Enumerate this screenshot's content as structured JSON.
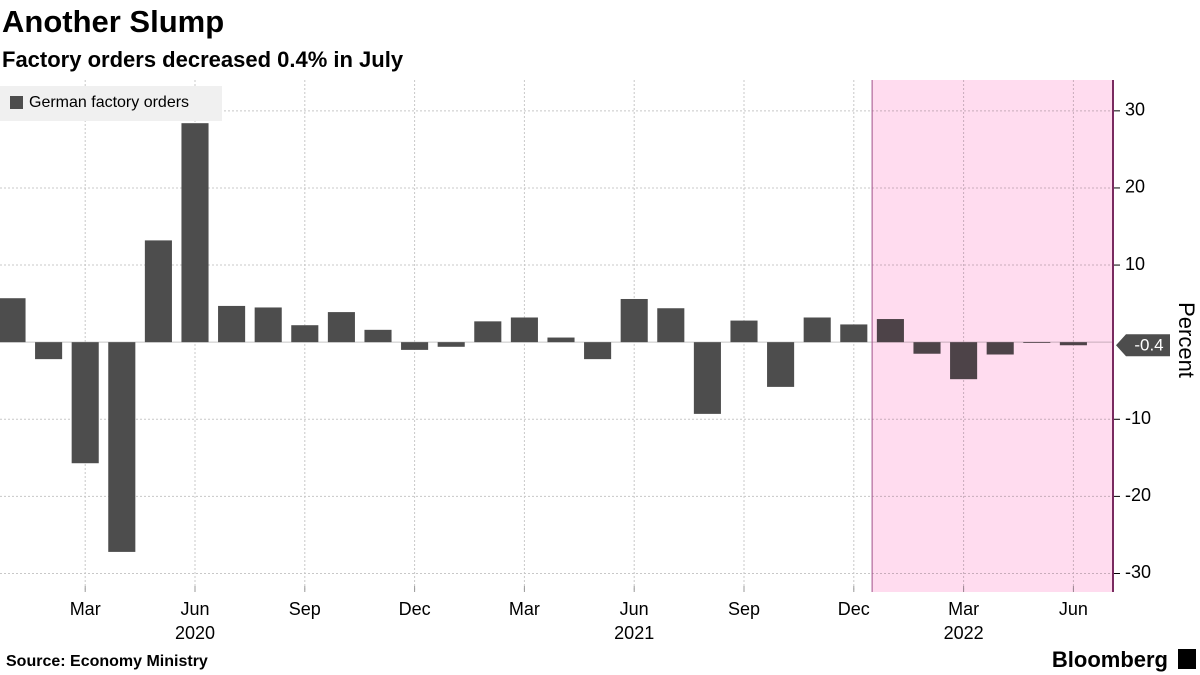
{
  "chart_data": {
    "type": "bar",
    "title": "Another Slump",
    "subtitle": "Factory orders decreased 0.4% in July",
    "y_axis_label": "Percent",
    "source": "Source: Economy Ministry",
    "brand": "Bloomberg",
    "categories": [
      null,
      null,
      "Mar",
      null,
      null,
      "Jun",
      null,
      null,
      "Sep",
      null,
      null,
      "Dec",
      null,
      null,
      "Mar",
      null,
      null,
      "Jun",
      null,
      null,
      "Sep",
      null,
      null,
      "Dec",
      null,
      null,
      "Mar",
      null,
      null,
      "Jun"
    ],
    "years": [
      {
        "index": 5,
        "label": "2020"
      },
      {
        "index": 17,
        "label": "2021"
      },
      {
        "index": 26,
        "label": "2022"
      }
    ],
    "series": [
      {
        "name": "German factory orders",
        "color": "#4d4d4d",
        "values": [
          5.7,
          -2.2,
          -15.7,
          -27.2,
          13.2,
          28.4,
          4.7,
          4.5,
          2.2,
          3.9,
          1.6,
          -1.0,
          -0.6,
          2.7,
          3.2,
          0.6,
          -2.2,
          5.6,
          4.4,
          -9.3,
          2.8,
          -5.8,
          3.2,
          2.3,
          3.0,
          -1.5,
          -4.8,
          -1.6,
          -0.1,
          -0.4
        ]
      }
    ],
    "ylim": [
      -32.4,
      34
    ],
    "yticks": [
      -30,
      -20,
      -10,
      10,
      20,
      30
    ],
    "grid": true
  }
}
